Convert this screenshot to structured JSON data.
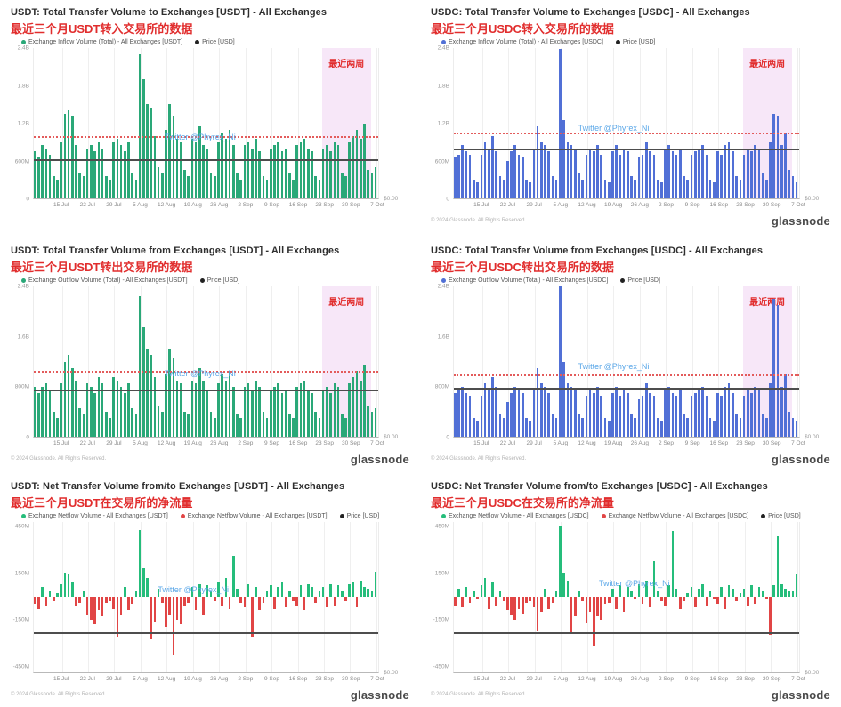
{
  "watermark": "Twitter @Phyrex_Ni",
  "highlight_label": "最近两周",
  "price_axis_zero": "$0.00",
  "footer": {
    "copyright": "© 2024 Glassnode. All Rights Reserved.",
    "brand": "glassnode"
  },
  "x_tick_labels": [
    "15 Jul",
    "22 Jul",
    "29 Jul",
    "5 Aug",
    "12 Aug",
    "19 Aug",
    "26 Aug",
    "2 Sep",
    "9 Sep",
    "16 Sep",
    "23 Sep",
    "30 Sep",
    "7 Oct"
  ],
  "x_tick_days": [
    7,
    14,
    21,
    28,
    35,
    42,
    49,
    56,
    63,
    70,
    77,
    84,
    91
  ],
  "n_days": 92,
  "colors": {
    "usdt_green": "#2aa878",
    "usdc_blue": "#5170d6",
    "net_green": "#25bd7b",
    "net_red": "#e14545",
    "price_black": "#222222",
    "avg_red": "#e35b5b",
    "highlight_pink": "#f7e7f8"
  },
  "chart_data": [
    {
      "type": "bar",
      "title": "USDT: Total Transfer Volume to Exchanges [USDT] - All Exchanges",
      "subtitle_cn": "最近三个月USDT转入交易所的数据",
      "legend": [
        {
          "color": "#2aa878",
          "label": "Exchange Inflow Volume (Total) - All Exchanges [USDT]"
        },
        {
          "color": "#222222",
          "label": "Price [USD]"
        }
      ],
      "unit": "USD (millions)",
      "ylim": [
        0,
        2400
      ],
      "yticks": [
        {
          "label": "2.4B",
          "value": 2400
        },
        {
          "label": "1.8B",
          "value": 1800
        },
        {
          "label": "1.2B",
          "value": 1200
        },
        {
          "label": "600M",
          "value": 600
        },
        {
          "label": "0",
          "value": 0
        }
      ],
      "bar_color": "#2aa878",
      "avg_line_value": 1000,
      "price_line_value": 620,
      "highlight": {
        "start_day": 77,
        "end_day": 90
      },
      "footer_visible": false,
      "watermark_pos": {
        "left_pct": 38,
        "top_pct": 56
      },
      "values": [
        750,
        650,
        850,
        800,
        700,
        350,
        300,
        900,
        1350,
        1400,
        1300,
        850,
        400,
        350,
        800,
        850,
        750,
        900,
        800,
        350,
        300,
        900,
        950,
        850,
        750,
        900,
        400,
        300,
        2300,
        1900,
        1500,
        1450,
        1000,
        500,
        400,
        1100,
        1500,
        1300,
        950,
        900,
        450,
        350,
        950,
        900,
        1150,
        850,
        800,
        400,
        350,
        900,
        1050,
        950,
        1100,
        850,
        400,
        300,
        850,
        900,
        800,
        950,
        750,
        350,
        300,
        800,
        850,
        900,
        750,
        800,
        400,
        300,
        850,
        900,
        950,
        800,
        750,
        350,
        300,
        800,
        850,
        750,
        900,
        850,
        400,
        350,
        900,
        1000,
        1100,
        950,
        1200,
        450,
        400,
        500
      ]
    },
    {
      "type": "bar",
      "title": "USDC: Total Transfer Volume to Exchanges [USDC] - All Exchanges",
      "subtitle_cn": "最近三个月USDC转入交易所的数据",
      "legend": [
        {
          "color": "#5170d6",
          "label": "Exchange Inflow Volume (Total) - All Exchanges [USDC]"
        },
        {
          "color": "#222222",
          "label": "Price [USD]"
        }
      ],
      "unit": "USD (millions)",
      "ylim": [
        0,
        2400
      ],
      "yticks": [
        {
          "label": "2.4B",
          "value": 2400
        },
        {
          "label": "1.8B",
          "value": 1800
        },
        {
          "label": "1.2B",
          "value": 1200
        },
        {
          "label": "600M",
          "value": 600
        },
        {
          "label": "0",
          "value": 0
        }
      ],
      "bar_color": "#5170d6",
      "avg_line_value": 1050,
      "price_line_value": 800,
      "highlight": {
        "start_day": 77,
        "end_day": 90
      },
      "footer_visible": true,
      "watermark_pos": {
        "left_pct": 36,
        "top_pct": 50
      },
      "values": [
        650,
        700,
        850,
        750,
        700,
        300,
        250,
        700,
        900,
        800,
        1000,
        750,
        350,
        300,
        600,
        750,
        850,
        700,
        650,
        300,
        250,
        800,
        1150,
        900,
        850,
        750,
        350,
        300,
        2380,
        1250,
        900,
        850,
        800,
        400,
        300,
        700,
        800,
        750,
        850,
        700,
        300,
        250,
        750,
        850,
        700,
        800,
        750,
        350,
        300,
        650,
        700,
        900,
        750,
        700,
        300,
        250,
        800,
        850,
        750,
        700,
        800,
        350,
        300,
        700,
        750,
        800,
        850,
        700,
        300,
        250,
        750,
        700,
        850,
        900,
        750,
        350,
        300,
        700,
        800,
        750,
        850,
        800,
        400,
        300,
        900,
        1350,
        1300,
        850,
        1050,
        450,
        350,
        250
      ]
    },
    {
      "type": "bar",
      "title": "USDT: Total Transfer Volume from Exchanges [USDT] - All Exchanges",
      "subtitle_cn": "最近三个月USDT转出交易所的数据",
      "legend": [
        {
          "color": "#2aa878",
          "label": "Exchange Outflow Volume (Total) - All Exchanges [USDT]"
        },
        {
          "color": "#222222",
          "label": "Price [USD]"
        }
      ],
      "unit": "USD (millions)",
      "ylim": [
        0,
        2400
      ],
      "yticks": [
        {
          "label": "2.4B",
          "value": 2400
        },
        {
          "label": "1.6B",
          "value": 1600
        },
        {
          "label": "800M",
          "value": 800
        },
        {
          "label": "0",
          "value": 0
        }
      ],
      "bar_color": "#2aa878",
      "avg_line_value": 1050,
      "price_line_value": 750,
      "highlight": {
        "start_day": 77,
        "end_day": 90
      },
      "footer_visible": true,
      "watermark_pos": {
        "left_pct": 38,
        "top_pct": 55
      },
      "values": [
        800,
        700,
        800,
        850,
        750,
        400,
        300,
        850,
        1200,
        1300,
        1100,
        900,
        450,
        350,
        850,
        800,
        700,
        950,
        850,
        400,
        300,
        950,
        900,
        800,
        700,
        850,
        450,
        350,
        2250,
        1750,
        1400,
        1300,
        950,
        500,
        400,
        1000,
        1400,
        1250,
        900,
        850,
        400,
        350,
        900,
        850,
        1100,
        900,
        750,
        400,
        300,
        850,
        1000,
        900,
        1050,
        800,
        350,
        300,
        800,
        850,
        750,
        900,
        800,
        400,
        300,
        750,
        800,
        850,
        700,
        750,
        350,
        300,
        800,
        850,
        900,
        750,
        700,
        400,
        300,
        750,
        800,
        700,
        850,
        800,
        350,
        300,
        850,
        950,
        1050,
        900,
        1150,
        500,
        400,
        450
      ]
    },
    {
      "type": "bar",
      "title": "USDC: Total Transfer Volume from Exchanges [USDC] - All Exchanges",
      "subtitle_cn": "最近三个月USDC转出交易所的数据",
      "legend": [
        {
          "color": "#5170d6",
          "label": "Exchange Outflow Volume (Total) - All Exchanges [USDC]"
        },
        {
          "color": "#222222",
          "label": "Price [USD]"
        }
      ],
      "unit": "USD (millions)",
      "ylim": [
        0,
        2400
      ],
      "yticks": [
        {
          "label": "2.4B",
          "value": 2400
        },
        {
          "label": "1.6B",
          "value": 1600
        },
        {
          "label": "800M",
          "value": 800
        },
        {
          "label": "0",
          "value": 0
        }
      ],
      "bar_color": "#5170d6",
      "avg_line_value": 1000,
      "price_line_value": 780,
      "highlight": {
        "start_day": 77,
        "end_day": 90
      },
      "footer_visible": true,
      "watermark_pos": {
        "left_pct": 36,
        "top_pct": 50
      },
      "values": [
        700,
        750,
        800,
        700,
        650,
        300,
        250,
        650,
        850,
        750,
        950,
        800,
        350,
        300,
        550,
        700,
        800,
        750,
        700,
        300,
        250,
        750,
        1100,
        850,
        800,
        700,
        350,
        300,
        2400,
        1200,
        850,
        800,
        750,
        350,
        300,
        650,
        750,
        700,
        800,
        650,
        300,
        250,
        700,
        800,
        650,
        750,
        700,
        350,
        300,
        600,
        650,
        850,
        700,
        650,
        300,
        250,
        750,
        800,
        700,
        650,
        750,
        350,
        300,
        650,
        700,
        750,
        800,
        650,
        300,
        250,
        700,
        650,
        800,
        850,
        700,
        350,
        300,
        650,
        750,
        700,
        800,
        750,
        350,
        300,
        850,
        2200,
        2100,
        800,
        1000,
        400,
        300,
        250
      ]
    },
    {
      "type": "bar",
      "title": "USDT: Net Transfer Volume from/to Exchanges [USDT] - All Exchanges",
      "subtitle_cn": "最近三个月USDT在交易所的净流量",
      "legend": [
        {
          "color": "#25bd7b",
          "label": "Exchange Netflow Volume - All Exchanges [USDT]"
        },
        {
          "color": "#e14545",
          "label": "Exchange Netflow Volume - All Exchanges [USDT]"
        },
        {
          "color": "#222222",
          "label": "Price [USD]"
        }
      ],
      "unit": "USD (millions)",
      "ylim": [
        -490,
        480
      ],
      "yticks": [
        {
          "label": "450M",
          "value": 450
        },
        {
          "label": "150M",
          "value": 150
        },
        {
          "label": "-150M",
          "value": -150
        },
        {
          "label": "-450M",
          "value": -450
        }
      ],
      "bar_colors": {
        "pos": "#25bd7b",
        "neg": "#e14545"
      },
      "avg_line_value": null,
      "price_line_value": -230,
      "highlight": null,
      "footer_visible": true,
      "watermark_pos": {
        "left_pct": 36,
        "top_pct": 42
      },
      "values": [
        -50,
        -80,
        60,
        -60,
        40,
        -30,
        20,
        80,
        150,
        140,
        90,
        -60,
        -40,
        30,
        -120,
        -150,
        -180,
        -90,
        -130,
        -40,
        -30,
        -80,
        -260,
        -120,
        60,
        -90,
        -50,
        40,
        430,
        180,
        120,
        -280,
        -160,
        50,
        -40,
        -200,
        -120,
        -380,
        -150,
        -180,
        -60,
        -40,
        60,
        -90,
        80,
        -120,
        70,
        40,
        -30,
        90,
        -60,
        120,
        -80,
        260,
        50,
        -40,
        -70,
        80,
        -260,
        60,
        -90,
        -40,
        30,
        70,
        -80,
        60,
        90,
        -70,
        40,
        -30,
        -60,
        70,
        -90,
        80,
        60,
        -40,
        30,
        60,
        -70,
        80,
        -60,
        70,
        40,
        -30,
        80,
        90,
        -70,
        100,
        60,
        50,
        40,
        160
      ]
    },
    {
      "type": "bar",
      "title": "USDC: Net Transfer Volume from/to Exchanges [USDC] - All Exchanges",
      "subtitle_cn": "最近三个月USDC在交易所的净流量",
      "legend": [
        {
          "color": "#25bd7b",
          "label": "Exchange Netflow Volume - All Exchanges [USDC]"
        },
        {
          "color": "#e14545",
          "label": "Exchange Netflow Volume - All Exchanges [USDC]"
        },
        {
          "color": "#222222",
          "label": "Price [USD]"
        }
      ],
      "unit": "USD (millions)",
      "ylim": [
        -490,
        480
      ],
      "yticks": [
        {
          "label": "450M",
          "value": 450
        },
        {
          "label": "150M",
          "value": 150
        },
        {
          "label": "-150M",
          "value": -150
        },
        {
          "label": "-450M",
          "value": -450
        }
      ],
      "bar_colors": {
        "pos": "#25bd7b",
        "neg": "#e14545"
      },
      "avg_line_value": null,
      "price_line_value": -230,
      "highlight": null,
      "footer_visible": true,
      "watermark_pos": {
        "left_pct": 42,
        "top_pct": 38
      },
      "values": [
        -60,
        50,
        -70,
        60,
        -40,
        30,
        -20,
        70,
        120,
        -80,
        90,
        -60,
        40,
        -30,
        -90,
        -120,
        -150,
        -80,
        -110,
        -40,
        -30,
        -70,
        -220,
        -100,
        50,
        -80,
        -40,
        30,
        450,
        150,
        100,
        -240,
        -130,
        40,
        -30,
        -170,
        -100,
        -320,
        -130,
        -150,
        -50,
        -40,
        50,
        -80,
        70,
        -100,
        60,
        30,
        -20,
        80,
        -50,
        100,
        -70,
        230,
        40,
        -30,
        -60,
        70,
        420,
        50,
        -80,
        -30,
        20,
        60,
        -70,
        50,
        80,
        -60,
        30,
        -20,
        -50,
        60,
        -80,
        70,
        50,
        -30,
        20,
        50,
        -60,
        70,
        -50,
        60,
        30,
        -20,
        -250,
        70,
        390,
        80,
        50,
        40,
        30,
        140
      ]
    }
  ]
}
